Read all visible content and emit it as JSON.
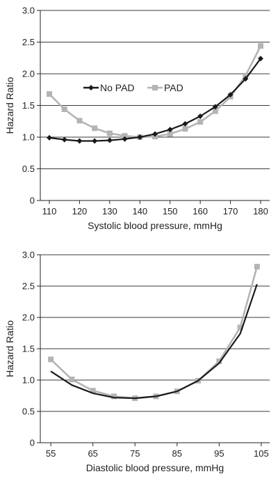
{
  "chart_data": [
    {
      "type": "line",
      "xlabel": "Systolic blood pressure, mmHg",
      "ylabel": "Hazard Ratio",
      "xlim": [
        107,
        183
      ],
      "ylim": [
        0,
        3.0
      ],
      "xticks": [
        "110",
        "120",
        "130",
        "140",
        "150",
        "160",
        "170",
        "180"
      ],
      "yticks": [
        "0",
        "0.5",
        "1.0",
        "1.5",
        "2.0",
        "2.5",
        "3.0"
      ],
      "grid": "horizontal",
      "legend": "center-left",
      "series": [
        {
          "name": "No PAD",
          "color": "#1a1a1a",
          "marker": "diamond",
          "x": [
            110,
            115,
            120,
            125,
            130,
            135,
            140,
            145,
            150,
            155,
            160,
            165,
            170,
            175,
            180
          ],
          "y": [
            0.99,
            0.96,
            0.94,
            0.94,
            0.95,
            0.97,
            1.0,
            1.05,
            1.12,
            1.21,
            1.33,
            1.48,
            1.67,
            1.92,
            2.24
          ]
        },
        {
          "name": "PAD",
          "color": "#b4b4b4",
          "marker": "square",
          "x": [
            110,
            115,
            120,
            125,
            130,
            135,
            140,
            145,
            150,
            155,
            160,
            165,
            170,
            175,
            180
          ],
          "y": [
            1.68,
            1.44,
            1.26,
            1.14,
            1.06,
            1.02,
            1.0,
            1.01,
            1.05,
            1.13,
            1.24,
            1.41,
            1.64,
            1.97,
            2.44
          ]
        }
      ]
    },
    {
      "type": "line",
      "xlabel": "Diastolic blood pressure, mmHg",
      "ylabel": "Hazard Ratio",
      "xlim": [
        52.5,
        107
      ],
      "ylim": [
        0,
        3.0
      ],
      "xticks": [
        "55",
        "65",
        "75",
        "85",
        "95",
        "105"
      ],
      "yticks": [
        "0",
        "0.5",
        "1.0",
        "1.5",
        "2.0",
        "2.5",
        "3.0"
      ],
      "grid": "horizontal",
      "legend": "none",
      "series": [
        {
          "name": "No PAD",
          "color": "#1a1a1a",
          "marker": "none",
          "x": [
            55,
            60,
            65,
            70,
            75,
            80,
            85,
            90,
            95,
            100,
            104
          ],
          "y": [
            1.14,
            0.92,
            0.79,
            0.72,
            0.71,
            0.74,
            0.82,
            0.99,
            1.27,
            1.74,
            2.53
          ]
        },
        {
          "name": "PAD",
          "color": "#b4b4b4",
          "marker": "square",
          "x": [
            55,
            60,
            65,
            70,
            75,
            80,
            85,
            90,
            95,
            100,
            104
          ],
          "y": [
            1.33,
            1.01,
            0.83,
            0.74,
            0.71,
            0.74,
            0.82,
            0.99,
            1.3,
            1.84,
            2.81
          ]
        }
      ]
    }
  ]
}
